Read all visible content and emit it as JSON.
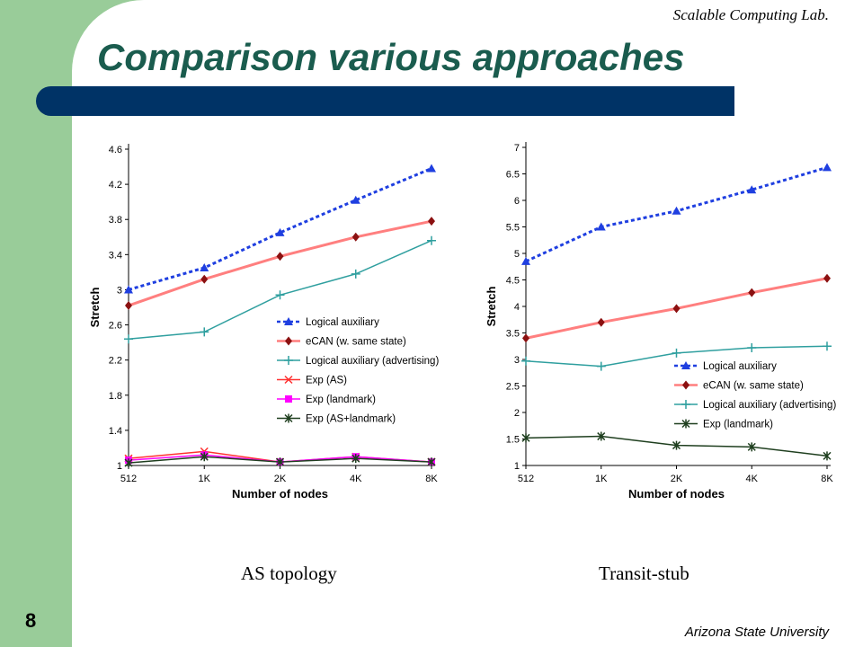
{
  "header": {
    "lab": "Scalable Computing Lab.",
    "title": "Comparison various approaches"
  },
  "footer": {
    "page_number": "8",
    "university": "Arizona State University"
  },
  "captions": [
    "AS topology",
    "Transit-stub"
  ],
  "colors": {
    "green_band": "#99cc99",
    "title_bar": "#003366",
    "title_text": "#1a5c4e"
  },
  "chart_data": [
    {
      "type": "line",
      "xlabel": "Number of nodes",
      "ylabel": "Stretch",
      "categories": [
        "512",
        "1K",
        "2K",
        "4K",
        "8K"
      ],
      "y_ticks": [
        "1",
        "1.4",
        "1.8",
        "2.2",
        "2.6",
        "3",
        "3.4",
        "3.8",
        "4.2",
        "4.6"
      ],
      "ylim": [
        1,
        4.6
      ],
      "legend_position": "center-right",
      "series": [
        {
          "name": "Logical auxiliary",
          "values": [
            3.0,
            3.25,
            3.65,
            4.02,
            4.38
          ],
          "color": "#1f3fe0",
          "marker": "triangle",
          "dash": true,
          "width": 3
        },
        {
          "name": "eCAN (w. same state)",
          "values": [
            2.82,
            3.12,
            3.38,
            3.6,
            3.78
          ],
          "color": "#ff7f7f",
          "marker": "diamond",
          "markerColor": "#8b1010",
          "dash": false,
          "width": 3
        },
        {
          "name": "Logical auxiliary (advertising)",
          "values": [
            2.44,
            2.52,
            2.94,
            3.18,
            3.56
          ],
          "color": "#2f9f9f",
          "marker": "plus",
          "dash": false,
          "width": 1.5
        },
        {
          "name": "Exp (AS)",
          "values": [
            1.08,
            1.16,
            1.04,
            1.1,
            1.04
          ],
          "color": "#ff3030",
          "marker": "cross",
          "dash": false,
          "width": 1.5
        },
        {
          "name": "Exp (landmark)",
          "values": [
            1.06,
            1.12,
            1.04,
            1.1,
            1.04
          ],
          "color": "#ff00ff",
          "marker": "square",
          "dash": false,
          "width": 1.5
        },
        {
          "name": "Exp (AS+landmark)",
          "values": [
            1.03,
            1.1,
            1.04,
            1.08,
            1.04
          ],
          "color": "#1f3f1f",
          "marker": "star",
          "dash": false,
          "width": 1.5
        }
      ]
    },
    {
      "type": "line",
      "xlabel": "Number of nodes",
      "ylabel": "Stretch",
      "categories": [
        "512",
        "1K",
        "2K",
        "4K",
        "8K"
      ],
      "y_ticks": [
        "1",
        "1.5",
        "2",
        "2.5",
        "3",
        "3.5",
        "4",
        "4.5",
        "5",
        "5.5",
        "6",
        "6.5",
        "7"
      ],
      "ylim": [
        1,
        7
      ],
      "legend_position": "center-right",
      "series": [
        {
          "name": "Logical auxiliary",
          "values": [
            4.85,
            5.5,
            5.8,
            6.2,
            6.62
          ],
          "color": "#1f3fe0",
          "marker": "triangle",
          "dash": true,
          "width": 3
        },
        {
          "name": "eCAN (w. same state)",
          "values": [
            3.4,
            3.7,
            3.96,
            4.26,
            4.53
          ],
          "color": "#ff7f7f",
          "marker": "diamond",
          "markerColor": "#8b1010",
          "dash": false,
          "width": 3
        },
        {
          "name": "Logical auxiliary (advertising)",
          "values": [
            2.97,
            2.87,
            3.12,
            3.22,
            3.25
          ],
          "color": "#2f9f9f",
          "marker": "plus",
          "dash": false,
          "width": 1.5
        },
        {
          "name": "Exp (landmark)",
          "values": [
            1.52,
            1.55,
            1.38,
            1.35,
            1.18
          ],
          "color": "#1f3f1f",
          "marker": "star",
          "dash": false,
          "width": 1.5
        }
      ]
    }
  ]
}
